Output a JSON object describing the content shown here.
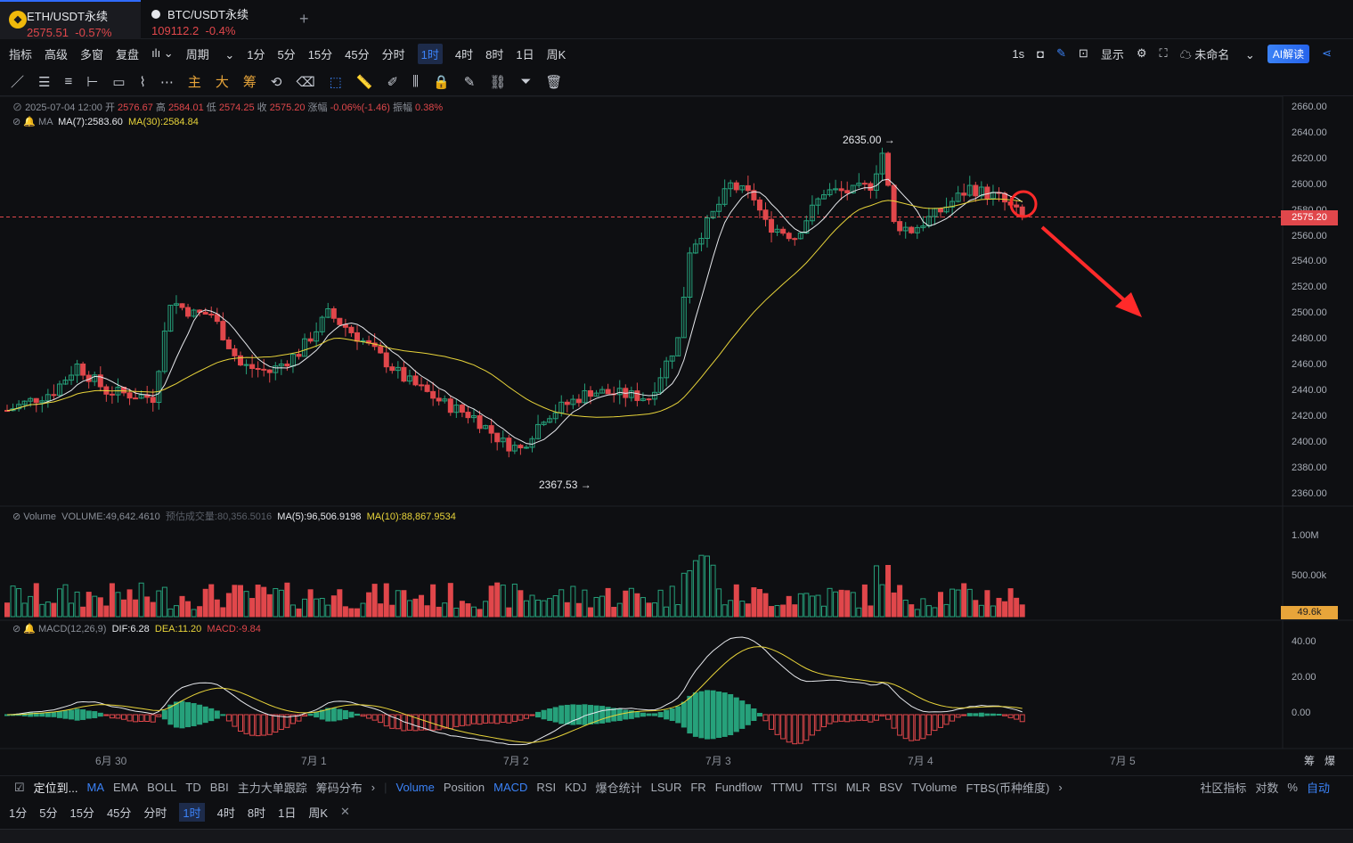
{
  "tabs": [
    {
      "symbol": "ETH/USDT永续",
      "price": "2575.51",
      "change": "-0.57%"
    },
    {
      "symbol": "BTC/USDT永续",
      "price": "109112.2",
      "change": "-0.4%"
    }
  ],
  "toolbar": {
    "left": [
      "指标",
      "高级",
      "多窗",
      "复盘",
      "周期",
      "1分",
      "5分",
      "15分",
      "45分",
      "分时",
      "1时",
      "4时",
      "8时",
      "1日",
      "周K"
    ],
    "selected": "1时",
    "right": [
      "1s",
      "显示",
      "未命名",
      "AI解读"
    ]
  },
  "drawing_tools": [
    "主",
    "大",
    "筹"
  ],
  "ohlc": {
    "date": "2025-07-04 12:00",
    "open_label": "开",
    "open": "2576.67",
    "high_label": "高",
    "high": "2584.01",
    "low_label": "低",
    "low": "2574.25",
    "close_label": "收",
    "close": "2575.20",
    "chg_label": "涨幅",
    "chg": "-0.06%(-1.46)",
    "amp_label": "振幅",
    "amp": "0.38%"
  },
  "ma": {
    "label": "MA",
    "ma7": "MA(7):2583.60",
    "ma30": "MA(30):2584.84"
  },
  "volume": {
    "label": "Volume",
    "value": "VOLUME:49,642.4610",
    "est": "预估成交量:80,356.5016",
    "ma5": "MA(5):96,506.9198",
    "ma10": "MA(10):88,867.9534"
  },
  "macd": {
    "label": "MACD(12,26,9)",
    "dif": "DIF:6.28",
    "dea": "DEA:11.20",
    "macd": "MACD:-9.84"
  },
  "price_axis": [
    "2660.00",
    "2640.00",
    "2620.00",
    "2600.00",
    "2580.00",
    "2560.00",
    "2540.00",
    "2520.00",
    "2500.00",
    "2480.00",
    "2460.00",
    "2440.00",
    "2420.00",
    "2400.00",
    "2380.00",
    "2360.00"
  ],
  "current_price": "2575.20",
  "high_marker": "2635.00",
  "low_marker": "2367.53",
  "volume_axis": [
    "1.00M",
    "500.00k"
  ],
  "volume_tag": "49.6k",
  "macd_axis": [
    "40.00",
    "20.00",
    "0.00"
  ],
  "x_labels": [
    "6月 30",
    "7月 1",
    "7月 2",
    "7月 3",
    "7月 4",
    "7月 5"
  ],
  "corner": [
    "筹",
    "爆"
  ],
  "indicators": [
    "定位到...",
    "MA",
    "EMA",
    "BOLL",
    "TD",
    "BBI",
    "主力大单跟踪",
    "筹码分布",
    "Volume",
    "Position",
    "MACD",
    "RSI",
    "KDJ",
    "爆仓统计",
    "LSUR",
    "FR",
    "Fundflow",
    "TTMU",
    "TTSI",
    "MLR",
    "BSV",
    "TVolume",
    "FTBS(币种维度)",
    "社区指标",
    "对数",
    "%",
    "自动"
  ],
  "periods": [
    "1分",
    "5分",
    "15分",
    "45分",
    "分时",
    "1时",
    "4时",
    "8时",
    "1日",
    "周K"
  ],
  "colors": {
    "up": "#26a17b",
    "down": "#e0474b",
    "ma7": "#e6e8ec",
    "ma30": "#e8d43a",
    "accent": "#3b82f6"
  }
}
